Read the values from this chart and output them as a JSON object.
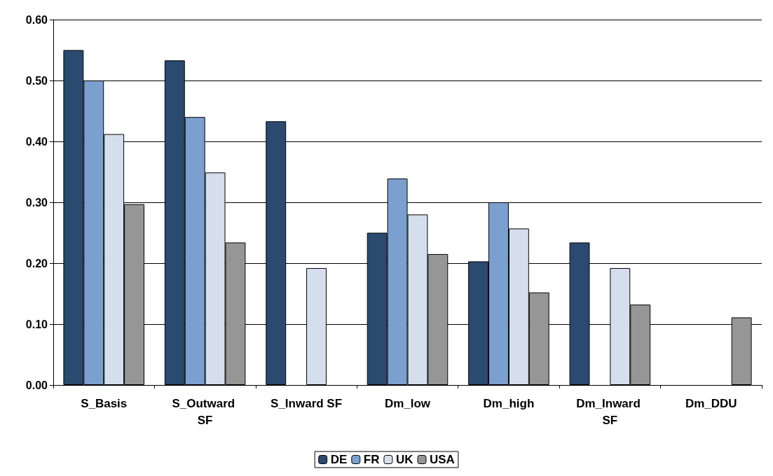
{
  "chart_data": {
    "type": "bar",
    "categories": [
      "S_Basis",
      "S_Outward SF",
      "S_Inward SF",
      "Dm_low",
      "Dm_high",
      "Dm_Inward SF",
      "Dm_DDU"
    ],
    "series": [
      {
        "name": "DE",
        "color": "#2b4a6f",
        "values": [
          0.55,
          0.533,
          0.433,
          0.25,
          0.203,
          0.234,
          null
        ]
      },
      {
        "name": "FR",
        "color": "#7ba0d0",
        "values": [
          0.5,
          0.44,
          null,
          0.339,
          0.3,
          null,
          null
        ]
      },
      {
        "name": "UK",
        "color": "#d5deec",
        "values": [
          0.412,
          0.349,
          0.192,
          0.28,
          0.257,
          0.192,
          null
        ]
      },
      {
        "name": "USA",
        "color": "#969696",
        "values": [
          0.297,
          0.234,
          null,
          0.215,
          0.152,
          0.132,
          0.111
        ]
      }
    ],
    "ylim": [
      0,
      0.6
    ],
    "yticks": [
      {
        "value": 0,
        "label": "0.00"
      },
      {
        "value": 0.1,
        "label": "0.10"
      },
      {
        "value": 0.2,
        "label": "0.20"
      },
      {
        "value": 0.3,
        "label": "0.30"
      },
      {
        "value": 0.4,
        "label": "0.40"
      },
      {
        "value": 0.5,
        "label": "0.50"
      },
      {
        "value": 0.6,
        "label": "0.60"
      }
    ],
    "grid": "y",
    "legend": "bottom"
  }
}
